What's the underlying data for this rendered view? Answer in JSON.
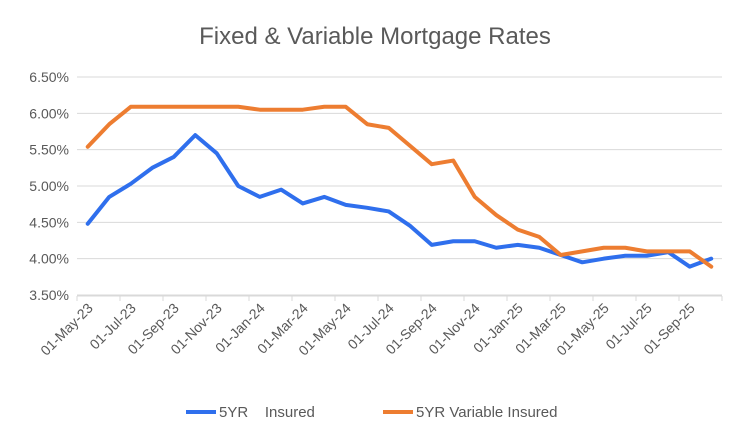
{
  "chart_data": {
    "type": "line",
    "title": "Fixed & Variable Mortgage Rates",
    "xlabel": "",
    "ylabel": "",
    "ylim": [
      3.5,
      6.5
    ],
    "yticks": [
      "3.50%",
      "4.00%",
      "4.50%",
      "5.00%",
      "5.50%",
      "6.00%",
      "6.50%"
    ],
    "ytick_values": [
      3.5,
      4.0,
      4.5,
      5.0,
      5.5,
      6.0,
      6.5
    ],
    "grid": true,
    "legend": "bottom",
    "categories": [
      "01-May-23",
      "01-Jun-23",
      "01-Jul-23",
      "01-Aug-23",
      "01-Sep-23",
      "01-Oct-23",
      "01-Nov-23",
      "01-Dec-23",
      "01-Jan-24",
      "01-Feb-24",
      "01-Mar-24",
      "01-Apr-24",
      "01-May-24",
      "01-Jun-24",
      "01-Jul-24",
      "01-Aug-24",
      "01-Sep-24",
      "01-Oct-24",
      "01-Nov-24",
      "01-Dec-24",
      "01-Jan-25",
      "01-Feb-25",
      "01-Mar-25",
      "01-Apr-25",
      "01-May-25",
      "01-Jun-25",
      "01-Jul-25",
      "01-Aug-25",
      "01-Sep-25",
      "01-Oct-25"
    ],
    "series": [
      {
        "name": "5YR    Insured",
        "color": "#2f6fed",
        "values": [
          4.48,
          4.85,
          5.03,
          5.25,
          5.4,
          5.7,
          5.45,
          5.0,
          4.85,
          4.95,
          4.76,
          4.85,
          4.74,
          4.7,
          4.65,
          4.45,
          4.19,
          4.24,
          4.24,
          4.15,
          4.19,
          4.15,
          4.05,
          3.95,
          4.0,
          4.04,
          4.04,
          4.09,
          3.89,
          4.0
        ]
      },
      {
        "name": "5YR Variable Insured",
        "color": "#ed7d31",
        "values": [
          5.54,
          5.85,
          6.09,
          6.09,
          6.09,
          6.09,
          6.09,
          6.09,
          6.05,
          6.05,
          6.05,
          6.09,
          6.09,
          5.85,
          5.8,
          5.55,
          5.3,
          5.35,
          4.85,
          4.6,
          4.4,
          4.3,
          4.05,
          4.1,
          4.15,
          4.15,
          4.1,
          4.1,
          4.1,
          3.89
        ]
      }
    ]
  }
}
